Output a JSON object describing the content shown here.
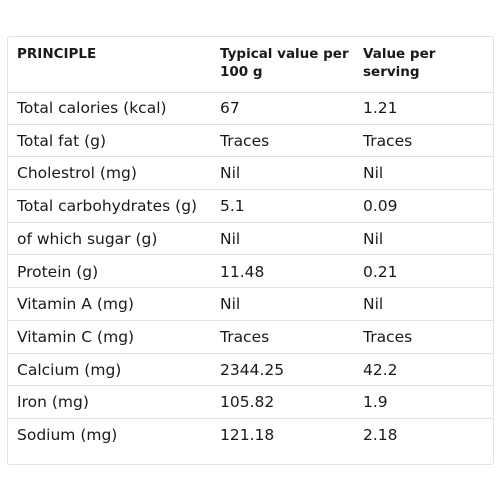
{
  "table": {
    "headers": [
      "PRINCIPLE",
      "Typical value per 100 g",
      "Value per serving"
    ],
    "rows": [
      [
        "Total calories (kcal)",
        "67",
        "1.21"
      ],
      [
        "Total fat (g)",
        "Traces",
        "Traces"
      ],
      [
        "Cholestrol (mg)",
        "Nil",
        "Nil"
      ],
      [
        "Total carbohydrates (g)",
        "5.1",
        "0.09"
      ],
      [
        "of which sugar (g)",
        "Nil",
        "Nil"
      ],
      [
        "Protein (g)",
        "11.48",
        "0.21"
      ],
      [
        "Vitamin A (mg)",
        "Nil",
        "Nil"
      ],
      [
        "Vitamin C (mg)",
        "Traces",
        "Traces"
      ],
      [
        "Calcium (mg)",
        "2344.25",
        "42.2"
      ],
      [
        "Iron (mg)",
        "105.82",
        "1.9"
      ],
      [
        "Sodium (mg)",
        "121.18",
        "2.18"
      ]
    ]
  }
}
